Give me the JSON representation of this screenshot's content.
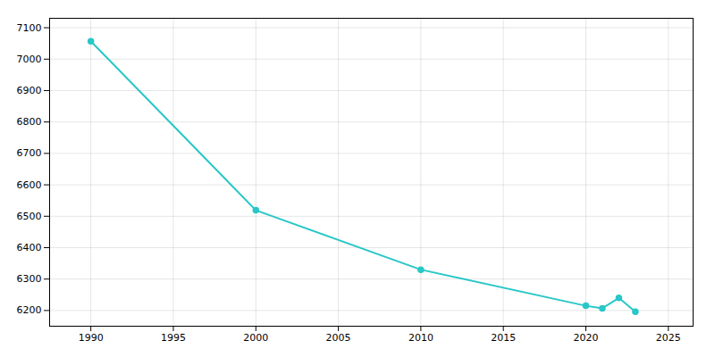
{
  "chart_data": {
    "type": "line",
    "x": [
      1990,
      2000,
      2010,
      2020,
      2021,
      2022,
      2023
    ],
    "values": [
      7057,
      6519,
      6330,
      6215,
      6207,
      6240,
      6196
    ],
    "color": "#29c7c7",
    "marker": "circle",
    "xlim": [
      1987.5,
      2026.5
    ],
    "xticks": [
      1990,
      1995,
      2000,
      2005,
      2010,
      2015,
      2020,
      2025
    ],
    "ylim": [
      6150,
      7130
    ],
    "yticks": [
      6200,
      6300,
      6400,
      6500,
      6600,
      6700,
      6800,
      6900,
      7000,
      7100
    ],
    "grid": true
  }
}
